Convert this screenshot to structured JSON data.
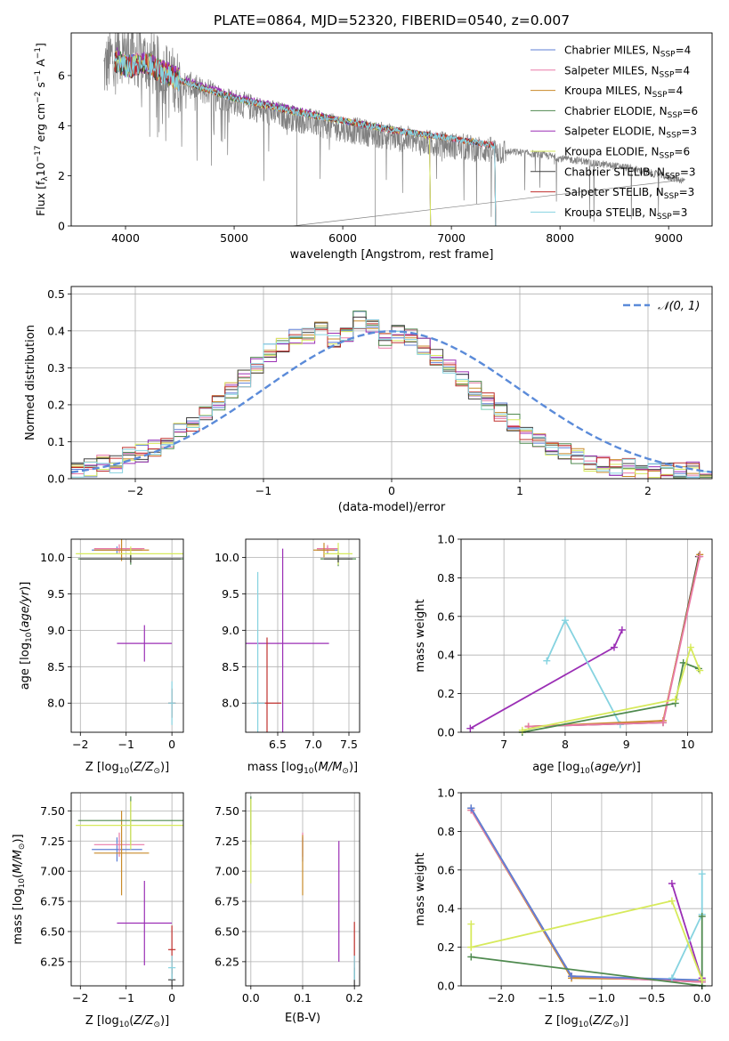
{
  "chart_data": [
    {
      "id": "spectrum",
      "type": "line",
      "title": "PLATE=0864, MJD=52320, FIBERID=0540, z=0.007",
      "xlabel": "wavelength [Angstrom, rest frame]",
      "ylabel": "Flux [f_λ 10^-17 erg cm^-2 s^-1 A^-1]",
      "xlim": [
        3500,
        9400
      ],
      "ylim": [
        0,
        7.7
      ],
      "xticks": [
        4000,
        5000,
        6000,
        7000,
        8000,
        9000
      ],
      "yticks": [
        0,
        2,
        4,
        6
      ],
      "legend_position": "top-right",
      "data": {
        "name": "data",
        "color": "#808080",
        "x": [
          3800,
          3900,
          4000,
          4100,
          4200,
          4300,
          4400,
          4500,
          4600,
          4700,
          4800,
          4900,
          5000,
          5100,
          5200,
          5300,
          5400,
          5500,
          5600,
          5700,
          5800,
          5900,
          6000,
          6100,
          6200,
          6300,
          6400,
          6500,
          6600,
          6700,
          6800,
          6900,
          7000,
          7100,
          7200,
          7300,
          7400,
          7500,
          7600,
          7700,
          7800,
          7900,
          8000,
          8100,
          8200,
          8300,
          8400,
          8500,
          8600,
          8700,
          8800,
          8900,
          9000,
          9100,
          9150
        ],
        "y": [
          6.2,
          6.9,
          7.0,
          6.8,
          6.6,
          6.3,
          6.0,
          5.7,
          5.6,
          5.4,
          5.3,
          5.1,
          4.95,
          4.8,
          4.7,
          4.55,
          4.45,
          4.35,
          4.25,
          4.15,
          4.05,
          3.95,
          3.9,
          3.8,
          3.75,
          3.65,
          3.6,
          3.5,
          3.45,
          3.35,
          3.3,
          3.25,
          3.2,
          3.15,
          3.1,
          3.05,
          3.0,
          2.95,
          2.95,
          2.9,
          2.85,
          2.8,
          2.7,
          2.65,
          2.6,
          2.5,
          2.45,
          2.4,
          2.35,
          2.25,
          2.15,
          2.05,
          1.95,
          1.85,
          1.8
        ]
      },
      "series": [
        {
          "name": "Chabrier MILES, N_SSP=4",
          "color": "#5e7fd6",
          "x": [
            3900,
            4000,
            4200,
            4500,
            5000,
            5500,
            6000,
            6500,
            7000,
            7400
          ],
          "y": [
            6.7,
            6.4,
            6.5,
            5.8,
            5.1,
            4.6,
            4.2,
            3.8,
            3.5,
            3.2
          ]
        },
        {
          "name": "Salpeter MILES, N_SSP=4",
          "color": "#e97aa8",
          "x": [
            3900,
            4000,
            4200,
            4500,
            5000,
            5500,
            6000,
            6500,
            7000,
            7400
          ],
          "y": [
            6.6,
            6.4,
            6.5,
            5.8,
            5.1,
            4.6,
            4.2,
            3.8,
            3.5,
            3.2
          ]
        },
        {
          "name": "Kroupa MILES, N_SSP=4",
          "color": "#c98a2a",
          "x": [
            3900,
            4000,
            4200,
            4500,
            5000,
            5500,
            6000,
            6500,
            7000,
            7400
          ],
          "y": [
            6.6,
            6.3,
            6.5,
            5.8,
            5.1,
            4.6,
            4.2,
            3.8,
            3.5,
            3.2
          ]
        },
        {
          "name": "Chabrier ELODIE, N_SSP=6",
          "color": "#4f8a4f",
          "x": [
            3900,
            4000,
            4200,
            4500,
            5000,
            5500,
            6000,
            6500,
            6800
          ],
          "y": [
            6.7,
            6.4,
            6.5,
            5.8,
            5.1,
            4.7,
            4.2,
            3.8,
            3.6
          ]
        },
        {
          "name": "Salpeter ELODIE, N_SSP=3",
          "color": "#9b2fb5",
          "x": [
            3900,
            4000,
            4200,
            4500,
            5000,
            5500,
            6000,
            6500,
            6800
          ],
          "y": [
            6.8,
            6.3,
            6.6,
            5.9,
            5.2,
            4.7,
            4.2,
            3.8,
            3.6
          ]
        },
        {
          "name": "Kroupa ELODIE, N_SSP=6",
          "color": "#d7ea5c",
          "x": [
            3900,
            4000,
            4200,
            4500,
            5000,
            5500,
            6000,
            6500,
            6800
          ],
          "y": [
            6.7,
            6.4,
            6.4,
            5.8,
            5.1,
            4.6,
            4.2,
            3.8,
            3.6
          ]
        },
        {
          "name": "Chabrier STELIB, N_SSP=3",
          "color": "#404040",
          "x": [
            3900,
            4000,
            4200,
            4500,
            5000,
            5500,
            6000,
            6500,
            7000,
            7400
          ],
          "y": [
            6.6,
            6.3,
            6.4,
            5.8,
            5.1,
            4.6,
            4.2,
            3.8,
            3.5,
            3.2
          ]
        },
        {
          "name": "Salpeter STELIB, N_SSP=3",
          "color": "#c0312e",
          "x": [
            3900,
            4000,
            4200,
            4500,
            5000,
            5500,
            6000,
            6500,
            7000,
            7400
          ],
          "y": [
            6.6,
            6.3,
            6.4,
            5.8,
            5.1,
            4.6,
            4.2,
            3.8,
            3.5,
            3.2
          ]
        },
        {
          "name": "Kroupa STELIB, N_SSP=3",
          "color": "#86d3e0",
          "x": [
            3900,
            4000,
            4200,
            4500,
            5000,
            5500,
            6000,
            6500,
            7000,
            7400
          ],
          "y": [
            6.6,
            6.3,
            6.4,
            5.8,
            5.1,
            4.6,
            4.2,
            3.8,
            3.5,
            3.2
          ]
        }
      ]
    },
    {
      "id": "residuals",
      "type": "line",
      "xlabel": "(data-model)/error",
      "ylabel": "Normed distribution",
      "xlim": [
        -2.5,
        2.5
      ],
      "ylim": [
        0,
        0.52
      ],
      "xticks": [
        -2,
        -1,
        0,
        1,
        2
      ],
      "yticks": [
        0.0,
        0.1,
        0.2,
        0.3,
        0.4,
        0.5
      ],
      "grid": true,
      "legend_position": "top-right",
      "gaussian": {
        "name": "𝒩(0, 1)",
        "color": "#5b8bd9",
        "mu": 0,
        "sigma": 1
      },
      "histogram_bin_width": 0.1,
      "histogram_center": [
        0.02,
        0.03,
        0.04,
        0.04,
        0.06,
        0.07,
        0.08,
        0.1,
        0.13,
        0.15,
        0.18,
        0.21,
        0.24,
        0.27,
        0.31,
        0.34,
        0.36,
        0.38,
        0.39,
        0.4,
        0.38,
        0.39,
        0.43,
        0.41,
        0.37,
        0.39,
        0.38,
        0.36,
        0.33,
        0.3,
        0.27,
        0.24,
        0.21,
        0.18,
        0.15,
        0.12,
        0.1,
        0.08,
        0.07,
        0.06,
        0.04,
        0.04,
        0.03,
        0.03,
        0.02,
        0.02,
        0.02,
        0.02,
        0.02,
        0.02
      ],
      "histogram_colors": [
        "#5e7fd6",
        "#e97aa8",
        "#c98a2a",
        "#4f8a4f",
        "#9b2fb5",
        "#d7ea5c",
        "#404040",
        "#c0312e",
        "#86d3e0"
      ]
    },
    {
      "id": "age-vs-Z",
      "type": "scatter",
      "xlabel": "Z [log10(Z/Z⊙)]",
      "ylabel": "age [log10(age/yr)]",
      "xlim": [
        -2.2,
        0.25
      ],
      "ylim": [
        7.6,
        10.25
      ],
      "xticks": [
        -2,
        -1,
        0
      ],
      "yticks": [
        8.0,
        8.5,
        9.0,
        9.5,
        10.0
      ],
      "points": [
        {
          "x": -1.2,
          "y": 10.1,
          "xerr": 0.55,
          "yerr": 0.05,
          "color": "#5e7fd6"
        },
        {
          "x": -1.15,
          "y": 10.12,
          "xerr": 0.55,
          "yerr": 0.06,
          "color": "#e97aa8"
        },
        {
          "x": -1.1,
          "y": 10.1,
          "xerr": 0.6,
          "yerr": 0.15,
          "color": "#c98a2a"
        },
        {
          "x": -0.9,
          "y": 9.98,
          "xerr": 1.15,
          "yerr": 0.08,
          "color": "#4f8a4f"
        },
        {
          "x": -0.6,
          "y": 8.82,
          "xerr": 0.6,
          "yerr": 0.25,
          "color": "#9b2fb5"
        },
        {
          "x": -0.9,
          "y": 10.05,
          "xerr": 1.2,
          "yerr": 0.1,
          "color": "#d7ea5c"
        },
        {
          "x": -0.9,
          "y": 9.98,
          "xerr": 1.1,
          "yerr": 0.05,
          "color": "#404040"
        },
        {
          "x": 0.0,
          "y": 8.0,
          "xerr": 0.08,
          "yerr": 0.2,
          "color": "#c0312e"
        },
        {
          "x": 0.0,
          "y": 8.0,
          "xerr": 0.08,
          "yerr": 0.3,
          "color": "#86d3e0"
        }
      ]
    },
    {
      "id": "age-vs-mass",
      "type": "scatter",
      "xlabel": "mass [log10(M/M⊙)]",
      "ylabel": "",
      "xlim": [
        6.05,
        7.65
      ],
      "ylim": [
        7.6,
        10.25
      ],
      "xticks": [
        6.5,
        7.0,
        7.5
      ],
      "yticks": [
        8.0,
        8.5,
        9.0,
        9.5,
        10.0
      ],
      "points": [
        {
          "x": 7.2,
          "y": 10.1,
          "xerr": 0.15,
          "yerr": 0.05,
          "color": "#5e7fd6"
        },
        {
          "x": 7.2,
          "y": 10.12,
          "xerr": 0.15,
          "yerr": 0.05,
          "color": "#e97aa8"
        },
        {
          "x": 7.15,
          "y": 10.1,
          "xerr": 0.15,
          "yerr": 0.1,
          "color": "#c98a2a"
        },
        {
          "x": 7.35,
          "y": 9.98,
          "xerr": 0.25,
          "yerr": 0.1,
          "color": "#4f8a4f"
        },
        {
          "x": 6.57,
          "y": 8.82,
          "xerr": 0.65,
          "yerr": 1.3,
          "color": "#9b2fb5"
        },
        {
          "x": 7.35,
          "y": 10.05,
          "xerr": 0.2,
          "yerr": 0.15,
          "color": "#d7ea5c"
        },
        {
          "x": 7.35,
          "y": 9.98,
          "xerr": 0.2,
          "yerr": 0.05,
          "color": "#404040"
        },
        {
          "x": 6.35,
          "y": 8.0,
          "xerr": 0.2,
          "yerr": 0.9,
          "color": "#c0312e"
        },
        {
          "x": 6.22,
          "y": 8.0,
          "xerr": 0.1,
          "yerr": 1.8,
          "color": "#86d3e0"
        }
      ]
    },
    {
      "id": "weight-vs-age",
      "type": "line",
      "xlabel": "age [log10(age/yr)]",
      "ylabel": "mass weight",
      "xlim": [
        6.3,
        10.4
      ],
      "ylim": [
        0,
        1.0
      ],
      "xticks": [
        7,
        8,
        9,
        10
      ],
      "yticks": [
        0.0,
        0.2,
        0.4,
        0.6,
        0.8,
        1.0
      ],
      "grid": true,
      "series": [
        {
          "color": "#9b2fb5",
          "x": [
            6.45,
            8.8,
            8.93
          ],
          "y": [
            0.02,
            0.44,
            0.53
          ]
        },
        {
          "color": "#86d3e0",
          "x": [
            7.7,
            8.0,
            8.9
          ],
          "y": [
            0.37,
            0.58,
            0.04
          ]
        },
        {
          "color": "#404040",
          "x": [
            7.4,
            9.6,
            10.18
          ],
          "y": [
            0.03,
            0.05,
            0.91
          ]
        },
        {
          "color": "#c98a2a",
          "x": [
            7.4,
            9.6,
            10.2
          ],
          "y": [
            0.03,
            0.06,
            0.92
          ]
        },
        {
          "color": "#e97aa8",
          "x": [
            7.4,
            9.6,
            10.2
          ],
          "y": [
            0.03,
            0.05,
            0.91
          ]
        },
        {
          "color": "#4f8a4f",
          "x": [
            7.3,
            9.8,
            9.93,
            10.18
          ],
          "y": [
            0.0,
            0.15,
            0.36,
            0.33
          ]
        },
        {
          "color": "#d7ea5c",
          "x": [
            7.3,
            9.8,
            10.05,
            10.2
          ],
          "y": [
            0.01,
            0.17,
            0.44,
            0.32
          ]
        }
      ]
    },
    {
      "id": "mass-vs-Z",
      "type": "scatter",
      "xlabel": "Z [log10(Z/Z⊙)]",
      "ylabel": "mass [log10(M/M⊙)]",
      "xlim": [
        -2.2,
        0.25
      ],
      "ylim": [
        6.05,
        7.65
      ],
      "xticks": [
        -2,
        -1,
        0
      ],
      "yticks": [
        6.25,
        6.5,
        6.75,
        7.0,
        7.25,
        7.5
      ],
      "points": [
        {
          "x": -1.2,
          "y": 7.18,
          "xerr": 0.55,
          "yerr": 0.1,
          "color": "#5e7fd6"
        },
        {
          "x": -1.15,
          "y": 7.22,
          "xerr": 0.55,
          "yerr": 0.1,
          "color": "#e97aa8"
        },
        {
          "x": -1.1,
          "y": 7.15,
          "xerr": 0.6,
          "yerr": 0.35,
          "color": "#c98a2a"
        },
        {
          "x": -0.9,
          "y": 7.42,
          "xerr": 1.15,
          "yerr": 0.2,
          "color": "#4f8a4f"
        },
        {
          "x": -0.6,
          "y": 6.57,
          "xerr": 0.6,
          "yerr": 0.35,
          "color": "#9b2fb5"
        },
        {
          "x": -0.9,
          "y": 7.38,
          "xerr": 1.2,
          "yerr": 0.2,
          "color": "#d7ea5c"
        },
        {
          "x": 0.0,
          "y": 6.1,
          "xerr": 0.08,
          "yerr": 0.1,
          "color": "#404040"
        },
        {
          "x": 0.0,
          "y": 6.35,
          "xerr": 0.08,
          "yerr": 0.2,
          "color": "#c0312e"
        },
        {
          "x": 0.0,
          "y": 6.2,
          "xerr": 0.08,
          "yerr": 0.1,
          "color": "#86d3e0"
        }
      ]
    },
    {
      "id": "mass-vs-EBV",
      "type": "scatter",
      "xlabel": "E(B-V)",
      "ylabel": "",
      "xlim": [
        -0.01,
        0.21
      ],
      "ylim": [
        6.05,
        7.65
      ],
      "xticks": [
        0.0,
        0.1,
        0.2
      ],
      "yticks": [
        6.25,
        6.5,
        6.75,
        7.0,
        7.25,
        7.5
      ],
      "points": [
        {
          "x": 0.1,
          "y": 7.18,
          "yerr": 0.1,
          "color": "#5e7fd6"
        },
        {
          "x": 0.1,
          "y": 7.22,
          "yerr": 0.1,
          "color": "#e97aa8"
        },
        {
          "x": 0.1,
          "y": 7.05,
          "yerr": 0.25,
          "color": "#c98a2a"
        },
        {
          "x": 0.0,
          "y": 7.42,
          "yerr": 0.2,
          "color": "#4f8a4f"
        },
        {
          "x": 0.17,
          "y": 6.75,
          "yerr": 0.5,
          "color": "#9b2fb5"
        },
        {
          "x": 0.0,
          "y": 7.25,
          "yerr": 0.35,
          "color": "#d7ea5c"
        },
        {
          "x": 0.2,
          "y": 6.1,
          "yerr": 0.1,
          "color": "#404040"
        },
        {
          "x": 0.2,
          "y": 6.38,
          "yerr": 0.2,
          "color": "#c0312e"
        },
        {
          "x": 0.2,
          "y": 6.2,
          "yerr": 0.1,
          "color": "#86d3e0"
        }
      ]
    },
    {
      "id": "weight-vs-Z",
      "type": "line",
      "xlabel": "Z [log10(Z/Z⊙)]",
      "ylabel": "mass weight",
      "xlim": [
        -2.4,
        0.1
      ],
      "ylim": [
        0,
        1.0
      ],
      "xticks": [
        -2.0,
        -1.5,
        -1.0,
        -0.5,
        0.0
      ],
      "yticks": [
        0.0,
        0.2,
        0.4,
        0.6,
        0.8,
        1.0
      ],
      "grid": true,
      "series": [
        {
          "color": "#404040",
          "x": [
            -2.3,
            -1.3,
            0.0
          ],
          "y": [
            0.92,
            0.05,
            0.02
          ]
        },
        {
          "color": "#c98a2a",
          "x": [
            -2.3,
            -1.3,
            0.0
          ],
          "y": [
            0.91,
            0.04,
            0.03
          ]
        },
        {
          "color": "#e97aa8",
          "x": [
            -2.3,
            -1.3,
            0.0
          ],
          "y": [
            0.91,
            0.05,
            0.02
          ]
        },
        {
          "color": "#5e7fd6",
          "x": [
            -2.3,
            -1.3,
            0.0
          ],
          "y": [
            0.92,
            0.05,
            0.03
          ]
        },
        {
          "color": "#9b2fb5",
          "x": [
            -0.3,
            0.0,
            0.0
          ],
          "y": [
            0.53,
            0.03,
            0.04
          ]
        },
        {
          "color": "#86d3e0",
          "x": [
            -0.3,
            0.0,
            0.0
          ],
          "y": [
            0.04,
            0.37,
            0.58
          ]
        },
        {
          "color": "#4f8a4f",
          "x": [
            -2.3,
            0.0,
            0.0
          ],
          "y": [
            0.15,
            0.0,
            0.36
          ]
        },
        {
          "color": "#d7ea5c",
          "x": [
            -2.3,
            -0.3,
            0.0
          ],
          "y": [
            0.2,
            0.44,
            0.03
          ]
        },
        {
          "color": "#d7ea5c",
          "x": [
            -2.3,
            -2.3
          ],
          "y": [
            0.2,
            0.32
          ]
        }
      ]
    }
  ]
}
